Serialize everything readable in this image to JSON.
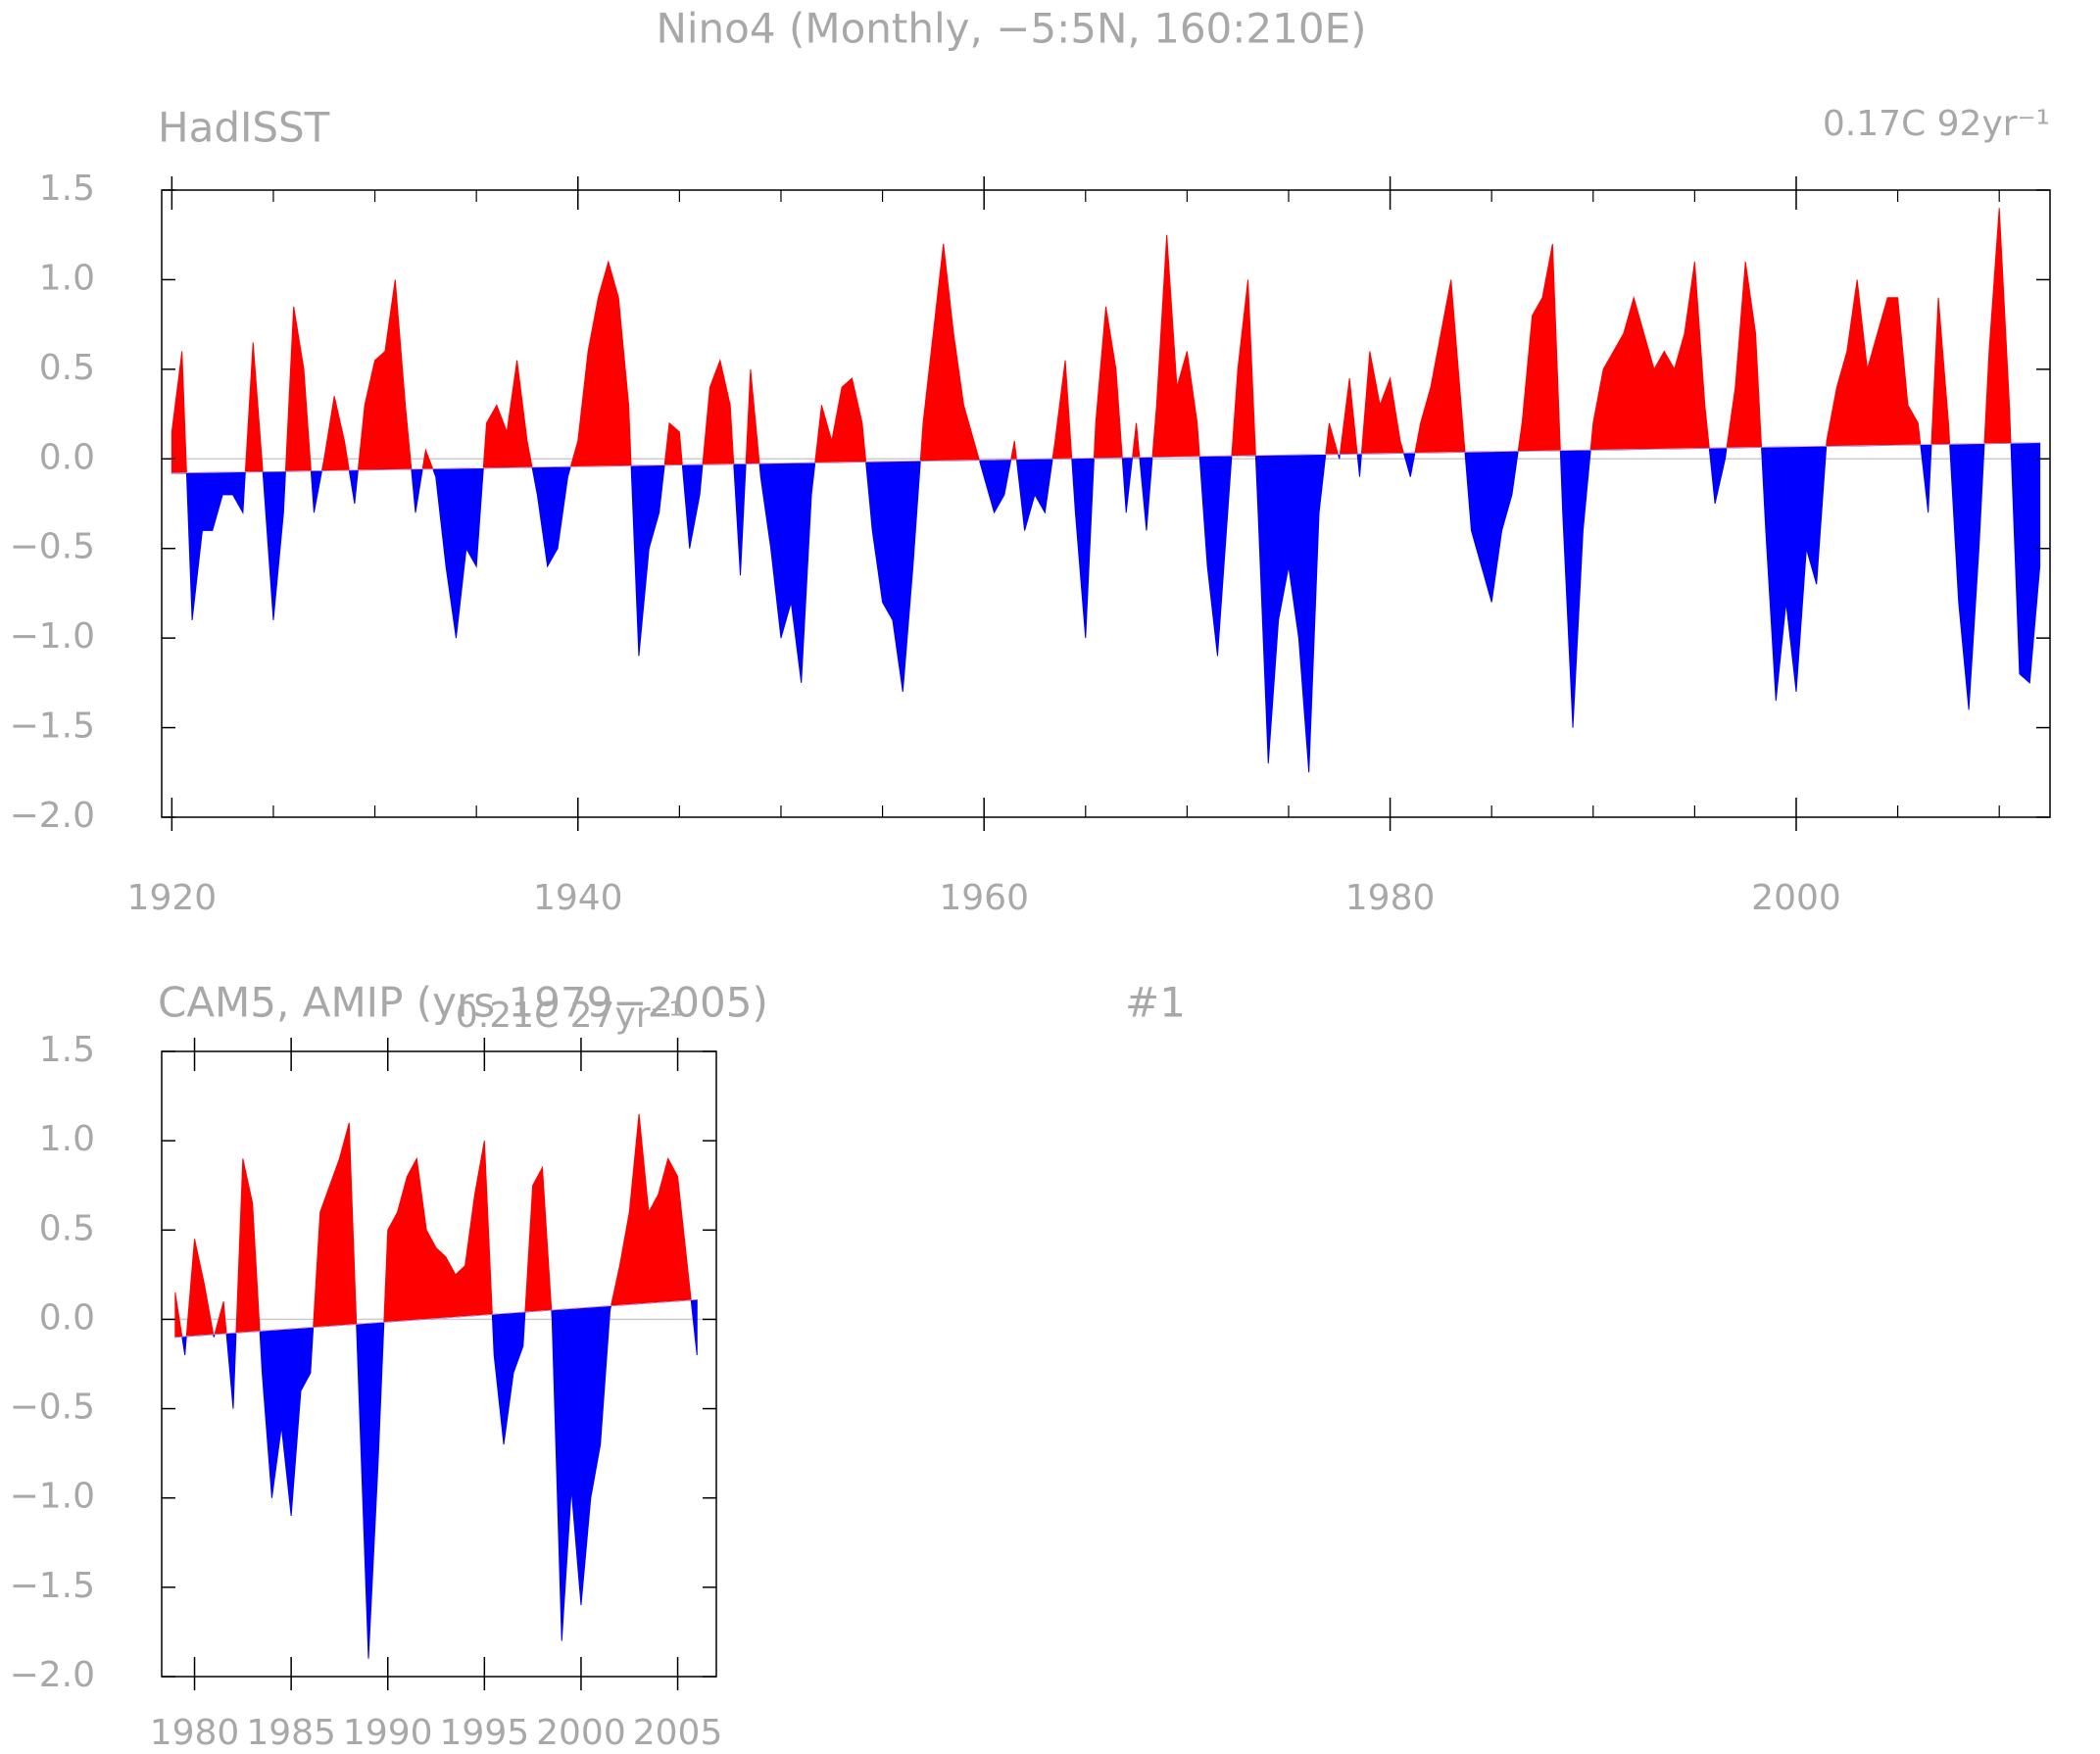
{
  "chart_data": [
    {
      "type": "area",
      "title": "Nino4 (Monthly, −5:5N, 160:210E)",
      "label_left": "HadISST",
      "label_right": "0.17C 92yr⁻¹",
      "above_color": "#ff0000",
      "below_color": "#0000ff",
      "trend": {
        "x": [
          1920,
          2012
        ],
        "values": [
          -0.08,
          0.09
        ]
      },
      "x": [
        1920,
        1920.5,
        1921,
        1921.5,
        1922,
        1922.5,
        1923,
        1923.5,
        1924,
        1924.5,
        1925,
        1925.5,
        1926,
        1926.5,
        1927,
        1927.5,
        1928,
        1928.5,
        1929,
        1929.5,
        1930,
        1930.5,
        1931,
        1931.5,
        1932,
        1932.5,
        1933,
        1933.5,
        1934,
        1934.5,
        1935,
        1935.5,
        1936,
        1936.5,
        1937,
        1937.5,
        1938,
        1938.5,
        1939,
        1939.5,
        1940,
        1940.5,
        1941,
        1941.5,
        1942,
        1942.5,
        1943,
        1943.5,
        1944,
        1944.5,
        1945,
        1945.5,
        1946,
        1946.5,
        1947,
        1947.5,
        1948,
        1948.5,
        1949,
        1949.5,
        1950,
        1950.5,
        1951,
        1951.5,
        1952,
        1952.5,
        1953,
        1953.5,
        1954,
        1954.5,
        1955,
        1955.5,
        1956,
        1956.5,
        1957,
        1957.5,
        1958,
        1958.5,
        1959,
        1959.5,
        1960,
        1960.5,
        1961,
        1961.5,
        1962,
        1962.5,
        1963,
        1963.5,
        1964,
        1964.5,
        1965,
        1965.5,
        1966,
        1966.5,
        1967,
        1967.5,
        1968,
        1968.5,
        1969,
        1969.5,
        1970,
        1970.5,
        1971,
        1971.5,
        1972,
        1972.5,
        1973,
        1973.5,
        1974,
        1974.5,
        1975,
        1975.5,
        1976,
        1976.5,
        1977,
        1977.5,
        1978,
        1978.5,
        1979,
        1979.5,
        1980,
        1980.5,
        1981,
        1981.5,
        1982,
        1982.5,
        1983,
        1983.5,
        1984,
        1984.5,
        1985,
        1985.5,
        1986,
        1986.5,
        1987,
        1987.5,
        1988,
        1988.5,
        1989,
        1989.5,
        1990,
        1990.5,
        1991,
        1991.5,
        1992,
        1992.5,
        1993,
        1993.5,
        1994,
        1994.5,
        1995,
        1995.5,
        1996,
        1996.5,
        1997,
        1997.5,
        1998,
        1998.5,
        1999,
        1999.5,
        2000,
        2000.5,
        2001,
        2001.5,
        2002,
        2002.5,
        2003,
        2003.5,
        2004,
        2004.5,
        2005,
        2005.5,
        2006,
        2006.5,
        2007,
        2007.5,
        2008,
        2008.5,
        2009,
        2009.5,
        2010,
        2010.5,
        2011,
        2011.5,
        2012
      ],
      "values": [
        0.15,
        0.6,
        -0.9,
        -0.4,
        -0.4,
        -0.2,
        -0.2,
        -0.3,
        0.65,
        -0.1,
        -0.9,
        -0.3,
        0.85,
        0.5,
        -0.3,
        0.0,
        0.35,
        0.1,
        -0.25,
        0.3,
        0.55,
        0.6,
        1.0,
        0.3,
        -0.3,
        0.05,
        -0.1,
        -0.6,
        -1.0,
        -0.5,
        -0.6,
        0.2,
        0.3,
        0.15,
        0.55,
        0.1,
        -0.2,
        -0.6,
        -0.5,
        -0.1,
        0.1,
        0.6,
        0.9,
        1.1,
        0.9,
        0.3,
        -1.1,
        -0.5,
        -0.3,
        0.2,
        0.15,
        -0.5,
        -0.2,
        0.4,
        0.55,
        0.3,
        -0.65,
        0.5,
        -0.1,
        -0.5,
        -1.0,
        -0.8,
        -1.25,
        -0.2,
        0.3,
        0.1,
        0.4,
        0.45,
        0.2,
        -0.4,
        -0.8,
        -0.9,
        -1.3,
        -0.6,
        0.2,
        0.7,
        1.2,
        0.7,
        0.3,
        0.1,
        -0.1,
        -0.3,
        -0.2,
        0.1,
        -0.4,
        -0.2,
        -0.3,
        0.1,
        0.55,
        -0.3,
        -1.0,
        0.2,
        0.85,
        0.5,
        -0.3,
        0.2,
        -0.4,
        0.3,
        1.25,
        0.4,
        0.6,
        0.2,
        -0.6,
        -1.1,
        -0.3,
        0.5,
        1.0,
        -0.3,
        -1.7,
        -0.9,
        -0.6,
        -1.0,
        -1.75,
        -0.3,
        0.2,
        0.0,
        0.45,
        -0.1,
        0.6,
        0.3,
        0.45,
        0.1,
        -0.1,
        0.2,
        0.4,
        0.7,
        1.0,
        0.3,
        -0.4,
        -0.6,
        -0.8,
        -0.4,
        -0.2,
        0.2,
        0.8,
        0.9,
        1.2,
        -0.3,
        -1.5,
        -0.4,
        0.2,
        0.5,
        0.6,
        0.7,
        0.9,
        0.7,
        0.5,
        0.6,
        0.5,
        0.7,
        1.1,
        0.3,
        -0.25,
        0.0,
        0.4,
        1.1,
        0.7,
        -0.4,
        -1.35,
        -0.8,
        -1.3,
        -0.5,
        -0.7,
        0.1,
        0.4,
        0.6,
        1.0,
        0.5,
        0.7,
        0.9,
        0.9,
        0.3,
        0.2,
        -0.3,
        0.9,
        0.2,
        -0.8,
        -1.4,
        -0.5,
        0.6,
        1.4,
        0.3,
        -1.2,
        -1.25,
        -0.6
      ],
      "xlim": [
        1919.5,
        2012.5
      ],
      "xticks": [
        1920,
        1940,
        1960,
        1980,
        2000
      ],
      "xminorticks": [
        1925,
        1930,
        1935,
        1945,
        1950,
        1955,
        1965,
        1970,
        1975,
        1985,
        1990,
        1995,
        2005,
        2010
      ],
      "ylim": [
        -2.0,
        1.5
      ],
      "yticks": [
        1.5,
        {
          "value": 1.0,
          "label": "1.0"
        },
        0.5,
        {
          "value": 0.0,
          "label": "0.0"
        },
        {
          "value": -0.5,
          "label": "−0.5"
        },
        {
          "value": -1.0,
          "label": "−1.0"
        },
        {
          "value": -1.5,
          "label": "−1.5"
        },
        {
          "value": -2.0,
          "label": "−2.0"
        }
      ]
    },
    {
      "type": "area",
      "label_left": "CAM5, AMIP (yrs 1979−2005)",
      "label_center": "#1",
      "label_right": "0.21C 27yr⁻¹",
      "above_color": "#ff0000",
      "below_color": "#0000ff",
      "trend": {
        "x": [
          1979,
          2006
        ],
        "values": [
          -0.1,
          0.11
        ]
      },
      "x": [
        1979,
        1979.5,
        1980,
        1980.5,
        1981,
        1981.5,
        1982,
        1982.5,
        1983,
        1983.5,
        1984,
        1984.5,
        1985,
        1985.5,
        1986,
        1986.5,
        1987,
        1987.5,
        1988,
        1988.5,
        1989,
        1989.5,
        1990,
        1990.5,
        1991,
        1991.5,
        1992,
        1992.5,
        1993,
        1993.5,
        1994,
        1994.5,
        1995,
        1995.5,
        1996,
        1996.5,
        1997,
        1997.5,
        1998,
        1998.5,
        1999,
        1999.5,
        2000,
        2000.5,
        2001,
        2001.5,
        2002,
        2002.5,
        2003,
        2003.5,
        2004,
        2004.5,
        2005,
        2005.5,
        2006
      ],
      "values": [
        0.15,
        -0.2,
        0.45,
        0.2,
        -0.1,
        0.1,
        -0.5,
        0.9,
        0.65,
        -0.3,
        -1.0,
        -0.6,
        -1.1,
        -0.4,
        -0.3,
        0.6,
        0.75,
        0.9,
        1.1,
        -0.4,
        -1.9,
        -0.8,
        0.5,
        0.6,
        0.8,
        0.9,
        0.5,
        0.4,
        0.35,
        0.25,
        0.3,
        0.7,
        1.0,
        -0.2,
        -0.7,
        -0.3,
        -0.15,
        0.75,
        0.85,
        0.0,
        -1.8,
        -0.95,
        -1.6,
        -1.0,
        -0.7,
        0.05,
        0.3,
        0.6,
        1.15,
        0.6,
        0.7,
        0.9,
        0.8,
        0.3,
        -0.2
      ],
      "xlim": [
        1978.3,
        2007
      ],
      "xticks": [
        1980,
        1985,
        1990,
        1995,
        2000,
        2005
      ],
      "ylim": [
        -2.0,
        1.5
      ],
      "yticks": [
        1.5,
        {
          "value": 1.0,
          "label": "1.0"
        },
        0.5,
        {
          "value": 0.0,
          "label": "0.0"
        },
        {
          "value": -0.5,
          "label": "−0.5"
        },
        {
          "value": -1.0,
          "label": "−1.0"
        },
        {
          "value": -1.5,
          "label": "−1.5"
        },
        {
          "value": -2.0,
          "label": "−2.0"
        }
      ]
    }
  ]
}
